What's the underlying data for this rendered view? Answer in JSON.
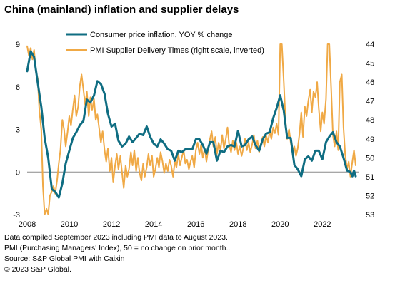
{
  "title": "China (mainland) inflation and supplier delays",
  "notes": [
    "Data compiled September 2023 including PMI data to August 2023.",
    "PMI (Purchasing Managers' Index), 50 = no change on prior month..",
    "Source: S&P Global PMI with Caixin",
    "© 2023 S&P Global."
  ],
  "colors": {
    "cpi": "#0f6d82",
    "pmi": "#f0a945",
    "zero_line": "#8a8a8a"
  },
  "chart_data": {
    "type": "line",
    "title": "China (mainland) inflation and supplier delays",
    "x_ticks": [
      "2008",
      "2010",
      "2012",
      "2014",
      "2016",
      "2018",
      "2020",
      "2022"
    ],
    "xlim": [
      2008.0,
      2023.75
    ],
    "left_axis": {
      "ticks": [
        "9",
        "6",
        "3",
        "0",
        "-3"
      ],
      "ylim": [
        -3,
        9
      ]
    },
    "right_axis": {
      "ticks": [
        "44",
        "45",
        "46",
        "47",
        "48",
        "49",
        "50",
        "51",
        "52",
        "53"
      ],
      "ylim": [
        44,
        53
      ],
      "inverted": true
    },
    "legend_position": "top",
    "series": [
      {
        "name": "Consumer price inflation, YOY % change",
        "axis": "left",
        "points": [
          [
            2008.0,
            7.1
          ],
          [
            2008.17,
            8.5
          ],
          [
            2008.33,
            8.1
          ],
          [
            2008.5,
            6.3
          ],
          [
            2008.67,
            4.6
          ],
          [
            2008.83,
            2.4
          ],
          [
            2009.0,
            1.0
          ],
          [
            2009.17,
            -1.2
          ],
          [
            2009.33,
            -1.4
          ],
          [
            2009.5,
            -1.8
          ],
          [
            2009.67,
            -0.8
          ],
          [
            2009.83,
            0.6
          ],
          [
            2010.0,
            1.5
          ],
          [
            2010.17,
            2.4
          ],
          [
            2010.33,
            2.8
          ],
          [
            2010.5,
            3.3
          ],
          [
            2010.67,
            3.6
          ],
          [
            2010.83,
            5.1
          ],
          [
            2011.0,
            4.9
          ],
          [
            2011.17,
            5.4
          ],
          [
            2011.33,
            6.4
          ],
          [
            2011.5,
            6.2
          ],
          [
            2011.67,
            5.5
          ],
          [
            2011.83,
            4.1
          ],
          [
            2012.0,
            3.2
          ],
          [
            2012.17,
            3.4
          ],
          [
            2012.33,
            2.2
          ],
          [
            2012.5,
            1.8
          ],
          [
            2012.67,
            2.0
          ],
          [
            2012.83,
            2.5
          ],
          [
            2013.0,
            2.1
          ],
          [
            2013.17,
            2.4
          ],
          [
            2013.33,
            2.7
          ],
          [
            2013.5,
            2.6
          ],
          [
            2013.67,
            3.2
          ],
          [
            2013.83,
            2.5
          ],
          [
            2014.0,
            2.0
          ],
          [
            2014.17,
            1.8
          ],
          [
            2014.33,
            2.3
          ],
          [
            2014.5,
            2.0
          ],
          [
            2014.67,
            1.6
          ],
          [
            2014.83,
            1.5
          ],
          [
            2015.0,
            0.8
          ],
          [
            2015.17,
            1.5
          ],
          [
            2015.33,
            1.4
          ],
          [
            2015.5,
            1.6
          ],
          [
            2015.67,
            1.6
          ],
          [
            2015.83,
            1.6
          ],
          [
            2016.0,
            2.3
          ],
          [
            2016.17,
            2.3
          ],
          [
            2016.33,
            1.9
          ],
          [
            2016.5,
            1.3
          ],
          [
            2016.67,
            2.1
          ],
          [
            2016.83,
            2.1
          ],
          [
            2017.0,
            0.8
          ],
          [
            2017.17,
            1.5
          ],
          [
            2017.33,
            1.4
          ],
          [
            2017.5,
            1.8
          ],
          [
            2017.67,
            1.9
          ],
          [
            2017.83,
            1.8
          ],
          [
            2018.0,
            2.9
          ],
          [
            2018.17,
            1.8
          ],
          [
            2018.33,
            1.9
          ],
          [
            2018.5,
            2.3
          ],
          [
            2018.67,
            2.5
          ],
          [
            2018.83,
            1.9
          ],
          [
            2019.0,
            1.5
          ],
          [
            2019.17,
            2.3
          ],
          [
            2019.33,
            2.7
          ],
          [
            2019.5,
            2.8
          ],
          [
            2019.67,
            3.8
          ],
          [
            2019.83,
            4.5
          ],
          [
            2020.0,
            5.4
          ],
          [
            2020.17,
            4.3
          ],
          [
            2020.33,
            2.4
          ],
          [
            2020.5,
            2.4
          ],
          [
            2020.67,
            0.5
          ],
          [
            2020.83,
            0.2
          ],
          [
            2021.0,
            -0.3
          ],
          [
            2021.17,
            0.9
          ],
          [
            2021.33,
            1.1
          ],
          [
            2021.5,
            0.8
          ],
          [
            2021.67,
            1.5
          ],
          [
            2021.83,
            1.5
          ],
          [
            2022.0,
            0.9
          ],
          [
            2022.17,
            2.1
          ],
          [
            2022.33,
            2.5
          ],
          [
            2022.5,
            2.8
          ],
          [
            2022.67,
            2.1
          ],
          [
            2022.83,
            1.8
          ],
          [
            2023.0,
            1.0
          ],
          [
            2023.17,
            0.1
          ],
          [
            2023.33,
            0.0
          ],
          [
            2023.42,
            -0.3
          ],
          [
            2023.5,
            0.1
          ],
          [
            2023.58,
            -0.3
          ]
        ]
      },
      {
        "name": "PMI Supplier Delivery Times (right scale, inverted)",
        "axis": "right",
        "points": [
          [
            2008.0,
            44.1
          ],
          [
            2008.08,
            44.6
          ],
          [
            2008.17,
            44.2
          ],
          [
            2008.25,
            44.8
          ],
          [
            2008.33,
            44.3
          ],
          [
            2008.42,
            45.5
          ],
          [
            2008.5,
            45.8
          ],
          [
            2008.58,
            47.5
          ],
          [
            2008.67,
            48.5
          ],
          [
            2008.75,
            51.5
          ],
          [
            2008.83,
            53.0
          ],
          [
            2008.92,
            52.7
          ],
          [
            2009.0,
            53.0
          ],
          [
            2009.08,
            52.0
          ],
          [
            2009.17,
            51.8
          ],
          [
            2009.25,
            51.5
          ],
          [
            2009.33,
            51.9
          ],
          [
            2009.42,
            51.2
          ],
          [
            2009.5,
            50.3
          ],
          [
            2009.58,
            49.6
          ],
          [
            2009.67,
            48.0
          ],
          [
            2009.75,
            48.5
          ],
          [
            2009.83,
            49.4
          ],
          [
            2009.92,
            48.6
          ],
          [
            2010.0,
            47.8
          ],
          [
            2010.08,
            48.3
          ],
          [
            2010.17,
            47.4
          ],
          [
            2010.25,
            46.7
          ],
          [
            2010.33,
            47.8
          ],
          [
            2010.42,
            47.3
          ],
          [
            2010.5,
            46.2
          ],
          [
            2010.58,
            45.6
          ],
          [
            2010.67,
            46.4
          ],
          [
            2010.75,
            47.2
          ],
          [
            2010.83,
            46.5
          ],
          [
            2010.92,
            47.8
          ],
          [
            2011.0,
            46.8
          ],
          [
            2011.08,
            47.5
          ],
          [
            2011.17,
            46.9
          ],
          [
            2011.25,
            48.0
          ],
          [
            2011.33,
            47.7
          ],
          [
            2011.42,
            48.5
          ],
          [
            2011.5,
            49.2
          ],
          [
            2011.58,
            48.6
          ],
          [
            2011.67,
            49.6
          ],
          [
            2011.75,
            50.2
          ],
          [
            2011.83,
            49.5
          ],
          [
            2011.92,
            50.7
          ],
          [
            2012.0,
            50.0
          ],
          [
            2012.08,
            51.3
          ],
          [
            2012.17,
            50.4
          ],
          [
            2012.25,
            49.8
          ],
          [
            2012.33,
            50.6
          ],
          [
            2012.42,
            49.9
          ],
          [
            2012.5,
            50.8
          ],
          [
            2012.58,
            51.6
          ],
          [
            2012.67,
            50.4
          ],
          [
            2012.75,
            51.0
          ],
          [
            2012.83,
            50.6
          ],
          [
            2012.92,
            49.7
          ],
          [
            2013.0,
            50.4
          ],
          [
            2013.08,
            49.6
          ],
          [
            2013.17,
            50.7
          ],
          [
            2013.25,
            50.0
          ],
          [
            2013.33,
            50.8
          ],
          [
            2013.42,
            51.2
          ],
          [
            2013.5,
            50.3
          ],
          [
            2013.58,
            51.0
          ],
          [
            2013.67,
            50.5
          ],
          [
            2013.75,
            49.8
          ],
          [
            2013.83,
            50.4
          ],
          [
            2013.92,
            49.9
          ],
          [
            2014.0,
            51.0
          ],
          [
            2014.08,
            50.6
          ],
          [
            2014.17,
            50.0
          ],
          [
            2014.25,
            50.5
          ],
          [
            2014.33,
            49.7
          ],
          [
            2014.42,
            50.2
          ],
          [
            2014.5,
            50.8
          ],
          [
            2014.58,
            50.3
          ],
          [
            2014.67,
            50.7
          ],
          [
            2014.75,
            50.1
          ],
          [
            2014.83,
            50.4
          ],
          [
            2014.92,
            51.0
          ],
          [
            2015.0,
            50.2
          ],
          [
            2015.08,
            50.5
          ],
          [
            2015.17,
            49.8
          ],
          [
            2015.25,
            50.4
          ],
          [
            2015.33,
            50.0
          ],
          [
            2015.42,
            49.6
          ],
          [
            2015.5,
            50.3
          ],
          [
            2015.58,
            50.1
          ],
          [
            2015.67,
            50.6
          ],
          [
            2015.75,
            50.2
          ],
          [
            2015.83,
            49.9
          ],
          [
            2015.92,
            50.5
          ],
          [
            2016.0,
            49.6
          ],
          [
            2016.08,
            49.2
          ],
          [
            2016.17,
            49.8
          ],
          [
            2016.25,
            49.3
          ],
          [
            2016.33,
            50.0
          ],
          [
            2016.42,
            49.5
          ],
          [
            2016.5,
            50.2
          ],
          [
            2016.58,
            49.6
          ],
          [
            2016.67,
            49.0
          ],
          [
            2016.75,
            48.6
          ],
          [
            2016.83,
            49.4
          ],
          [
            2016.92,
            48.9
          ],
          [
            2017.0,
            49.8
          ],
          [
            2017.08,
            49.2
          ],
          [
            2017.17,
            49.6
          ],
          [
            2017.25,
            48.8
          ],
          [
            2017.33,
            49.5
          ],
          [
            2017.42,
            49.0
          ],
          [
            2017.5,
            48.4
          ],
          [
            2017.58,
            49.3
          ],
          [
            2017.67,
            49.7
          ],
          [
            2017.75,
            49.1
          ],
          [
            2017.83,
            49.6
          ],
          [
            2017.92,
            49.2
          ],
          [
            2018.0,
            49.8
          ],
          [
            2018.08,
            49.4
          ],
          [
            2018.17,
            49.9
          ],
          [
            2018.25,
            49.5
          ],
          [
            2018.33,
            49.0
          ],
          [
            2018.42,
            49.6
          ],
          [
            2018.5,
            49.2
          ],
          [
            2018.58,
            49.7
          ],
          [
            2018.67,
            49.3
          ],
          [
            2018.75,
            48.8
          ],
          [
            2018.83,
            49.5
          ],
          [
            2018.92,
            49.1
          ],
          [
            2019.0,
            49.7
          ],
          [
            2019.08,
            49.3
          ],
          [
            2019.17,
            48.9
          ],
          [
            2019.25,
            49.4
          ],
          [
            2019.33,
            48.8
          ],
          [
            2019.42,
            49.2
          ],
          [
            2019.5,
            48.6
          ],
          [
            2019.58,
            49.0
          ],
          [
            2019.67,
            48.4
          ],
          [
            2019.75,
            48.7
          ],
          [
            2019.83,
            48.2
          ],
          [
            2019.92,
            48.8
          ],
          [
            2020.0,
            44.0
          ],
          [
            2020.08,
            44.0
          ],
          [
            2020.17,
            46.0
          ],
          [
            2020.25,
            48.0
          ],
          [
            2020.33,
            49.0
          ],
          [
            2020.42,
            48.5
          ],
          [
            2020.5,
            49.2
          ],
          [
            2020.58,
            49.7
          ],
          [
            2020.67,
            49.4
          ],
          [
            2020.75,
            49.9
          ],
          [
            2020.83,
            49.5
          ],
          [
            2020.92,
            48.7
          ],
          [
            2021.0,
            47.6
          ],
          [
            2021.08,
            48.9
          ],
          [
            2021.17,
            47.3
          ],
          [
            2021.25,
            47.8
          ],
          [
            2021.33,
            47.0
          ],
          [
            2021.42,
            46.4
          ],
          [
            2021.5,
            47.6
          ],
          [
            2021.58,
            46.5
          ],
          [
            2021.67,
            46.8
          ],
          [
            2021.75,
            46.0
          ],
          [
            2021.83,
            47.4
          ],
          [
            2021.92,
            48.6
          ],
          [
            2022.0,
            47.6
          ],
          [
            2022.08,
            48.2
          ],
          [
            2022.17,
            46.9
          ],
          [
            2022.25,
            44.0
          ],
          [
            2022.33,
            44.0
          ],
          [
            2022.42,
            46.4
          ],
          [
            2022.5,
            48.8
          ],
          [
            2022.58,
            49.4
          ],
          [
            2022.67,
            48.6
          ],
          [
            2022.75,
            49.6
          ],
          [
            2022.83,
            46.0
          ],
          [
            2022.92,
            45.6
          ],
          [
            2023.0,
            48.4
          ],
          [
            2023.08,
            49.8
          ],
          [
            2023.17,
            50.6
          ],
          [
            2023.25,
            50.2
          ],
          [
            2023.33,
            51.0
          ],
          [
            2023.42,
            50.2
          ],
          [
            2023.5,
            49.6
          ],
          [
            2023.58,
            50.4
          ]
        ]
      }
    ]
  }
}
